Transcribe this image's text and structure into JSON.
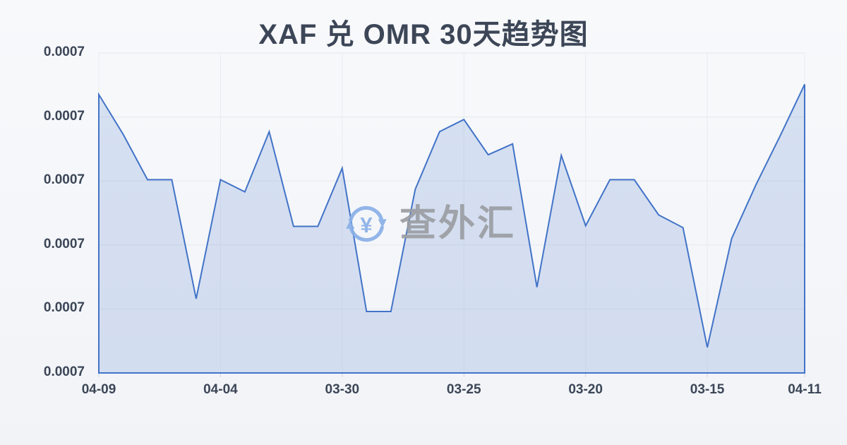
{
  "header": {
    "title": "XAF 兑 OMR 30天趋势图"
  },
  "watermark": {
    "text": "查外汇",
    "icon": "currency-exchange-refresh-icon"
  },
  "chart_data": {
    "type": "area",
    "title": "XAF 兑 OMR 30天趋势图",
    "x_tick_labels": [
      "04-09",
      "04-04",
      "03-30",
      "03-25",
      "03-20",
      "03-15",
      "04-11"
    ],
    "x_tick_point_indices": [
      0,
      5,
      10,
      15,
      20,
      25,
      29
    ],
    "y_tick_labels": [
      "0.0007",
      "0.0007",
      "0.0007",
      "0.0007",
      "0.0007",
      "0.0007"
    ],
    "num_points": 30,
    "values": [
      4.35,
      3.73,
      3.02,
      3.02,
      1.16,
      3.02,
      2.83,
      3.77,
      2.29,
      2.29,
      3.2,
      0.96,
      0.96,
      2.87,
      3.77,
      3.96,
      3.41,
      3.58,
      1.34,
      3.4,
      2.3,
      3.02,
      3.02,
      2.47,
      2.27,
      0.4,
      2.1,
      2.94,
      3.71,
      4.51
    ],
    "value_unit": "relative height above the x-axis measured in horizontal-gridline intervals (0 = bottom axis, 5 = top gridline); every gridline tick label displays the rounded value 0.0007",
    "xlabel": "",
    "ylabel": "",
    "grid": true,
    "legend": false
  },
  "colors": {
    "line": "#4273c8",
    "fill": "rgba(66,115,200,0.18)",
    "text": "#3c4657",
    "h_grid": "#e6e8ed",
    "v_grid": "#e9ebf0",
    "tick": "#d0d3d9",
    "watermark_text": "#9b9ea3",
    "watermark_icon": "#8ab0e8"
  }
}
